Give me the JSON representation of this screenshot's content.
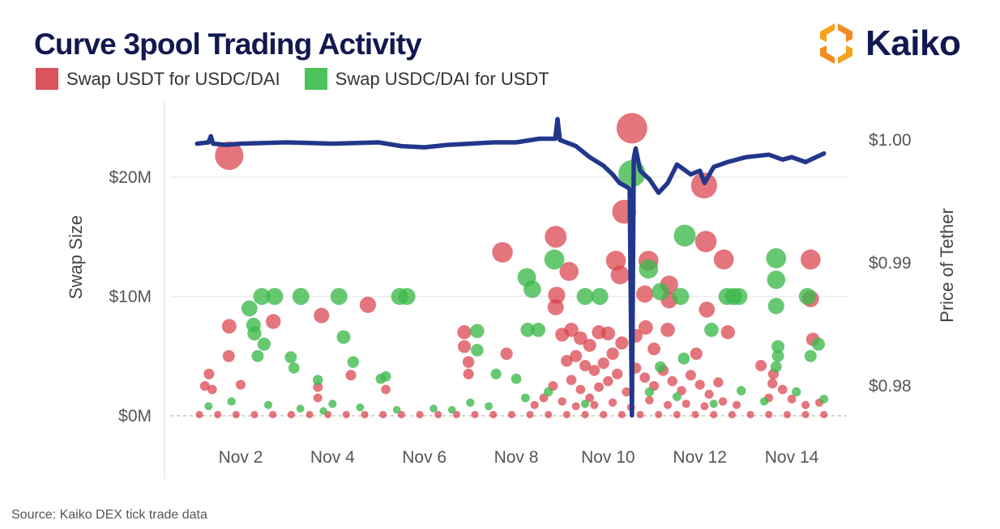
{
  "chart_data": {
    "type": "scatter",
    "title": "Curve 3pool Trading Activity",
    "ylabel": "Swap Size",
    "y2label": "Price of Tether",
    "xticks": [
      "Nov 2",
      "Nov 4",
      "Nov 6",
      "Nov 8",
      "Nov 10",
      "Nov 12",
      "Nov 14"
    ],
    "xtick_days": [
      2,
      4,
      6,
      8,
      10,
      12,
      14
    ],
    "yticks": [
      "$0M",
      "$10M",
      "$20M"
    ],
    "ytick_values": [
      0,
      10,
      20
    ],
    "y2ticks": [
      "$1.00",
      "$0.99",
      "$0.98"
    ],
    "y2tick_values": [
      1.0,
      0.99,
      0.98
    ],
    "x_unit": "day of November",
    "y_unit": "$M",
    "grid": true,
    "legend_placement": "top-left",
    "colors": {
      "usdt_sold": "#d9404a",
      "usdt_bought": "#3cb84a",
      "price_line": "#22378a"
    },
    "series": [
      {
        "name": "Swap USDT for USDC/DAI",
        "color_key": "usdt_sold",
        "points": [
          [
            1.75,
            21.8
          ],
          [
            1.75,
            7.5
          ],
          [
            1.74,
            5.0
          ],
          [
            1.31,
            3.5
          ],
          [
            1.22,
            2.5
          ],
          [
            1.38,
            2.2
          ],
          [
            2.0,
            2.6
          ],
          [
            2.71,
            7.9
          ],
          [
            3.76,
            8.4
          ],
          [
            4.77,
            9.3
          ],
          [
            4.4,
            3.4
          ],
          [
            3.68,
            2.4
          ],
          [
            3.68,
            1.5
          ],
          [
            5.16,
            2.2
          ],
          [
            6.87,
            7.0
          ],
          [
            6.87,
            5.8
          ],
          [
            6.96,
            4.5
          ],
          [
            6.96,
            3.5
          ],
          [
            7.7,
            13.7
          ],
          [
            7.79,
            5.2
          ],
          [
            8.86,
            15.0
          ],
          [
            9.15,
            12.1
          ],
          [
            8.88,
            10.1
          ],
          [
            8.86,
            9.1
          ],
          [
            10.17,
            13.0
          ],
          [
            10.26,
            11.8
          ],
          [
            10.52,
            24.1
          ],
          [
            10.35,
            17.1
          ],
          [
            10.88,
            13.0
          ],
          [
            10.8,
            10.2
          ],
          [
            11.33,
            11.0
          ],
          [
            11.33,
            9.7
          ],
          [
            12.13,
            14.6
          ],
          [
            12.52,
            13.1
          ],
          [
            12.09,
            19.3
          ],
          [
            12.15,
            8.9
          ],
          [
            12.61,
            7.0
          ],
          [
            14.41,
            13.1
          ],
          [
            14.41,
            9.8
          ],
          [
            14.46,
            6.4
          ],
          [
            13.33,
            4.2
          ],
          [
            13.58,
            2.7
          ],
          [
            11.3,
            7.2
          ],
          [
            10.82,
            7.4
          ],
          [
            11.92,
            5.2
          ],
          [
            9.0,
            6.8
          ],
          [
            9.2,
            7.2
          ],
          [
            9.4,
            6.5
          ],
          [
            9.6,
            5.9
          ],
          [
            9.3,
            5.0
          ],
          [
            9.1,
            4.6
          ],
          [
            9.5,
            4.2
          ],
          [
            9.7,
            3.8
          ],
          [
            9.9,
            4.4
          ],
          [
            10.1,
            5.2
          ],
          [
            10.3,
            6.1
          ],
          [
            10.0,
            2.9
          ],
          [
            9.2,
            3.0
          ],
          [
            9.4,
            2.2
          ],
          [
            9.6,
            1.5
          ],
          [
            9.8,
            2.4
          ],
          [
            10.2,
            3.5
          ],
          [
            10.4,
            2.0
          ],
          [
            10.6,
            4.0
          ],
          [
            10.8,
            3.2
          ],
          [
            11.0,
            2.5
          ],
          [
            11.2,
            3.8
          ],
          [
            11.4,
            2.9
          ],
          [
            11.6,
            2.1
          ],
          [
            11.8,
            3.4
          ],
          [
            12.0,
            2.6
          ],
          [
            12.2,
            1.8
          ],
          [
            9.0,
            1.2
          ],
          [
            9.3,
            0.8
          ],
          [
            9.7,
            0.9
          ],
          [
            10.1,
            1.1
          ],
          [
            10.5,
            0.7
          ],
          [
            10.9,
            1.3
          ],
          [
            11.3,
            0.9
          ],
          [
            11.7,
            1.0
          ],
          [
            12.1,
            0.8
          ],
          [
            12.5,
            1.2
          ],
          [
            12.8,
            0.9
          ],
          [
            13.5,
            1.5
          ],
          [
            13.8,
            2.2
          ],
          [
            14.0,
            1.4
          ],
          [
            14.3,
            0.9
          ],
          [
            14.6,
            1.1
          ],
          [
            8.6,
            1.5
          ],
          [
            8.4,
            0.9
          ],
          [
            8.8,
            2.5
          ],
          [
            10.6,
            6.7
          ],
          [
            10.0,
            6.9
          ],
          [
            11.0,
            5.6
          ],
          [
            9.8,
            7.0
          ],
          [
            12.4,
            2.8
          ],
          [
            13.6,
            3.5
          ],
          [
            1.1,
            0.1
          ],
          [
            1.5,
            0.1
          ],
          [
            1.9,
            0.1
          ],
          [
            2.3,
            0.1
          ],
          [
            2.7,
            0.1
          ],
          [
            3.1,
            0.1
          ],
          [
            3.5,
            0.1
          ],
          [
            3.9,
            0.1
          ],
          [
            4.3,
            0.1
          ],
          [
            4.7,
            0.1
          ],
          [
            5.1,
            0.1
          ],
          [
            5.5,
            0.1
          ],
          [
            5.9,
            0.1
          ],
          [
            6.3,
            0.1
          ],
          [
            6.7,
            0.1
          ],
          [
            7.1,
            0.1
          ],
          [
            7.5,
            0.1
          ],
          [
            7.9,
            0.1
          ],
          [
            8.3,
            0.1
          ],
          [
            8.7,
            0.1
          ],
          [
            9.1,
            0.1
          ],
          [
            9.5,
            0.1
          ],
          [
            9.9,
            0.1
          ],
          [
            10.3,
            0.1
          ],
          [
            10.7,
            0.1
          ],
          [
            11.1,
            0.1
          ],
          [
            11.5,
            0.1
          ],
          [
            11.9,
            0.1
          ],
          [
            12.3,
            0.1
          ],
          [
            12.7,
            0.1
          ],
          [
            13.1,
            0.1
          ],
          [
            13.5,
            0.1
          ],
          [
            13.9,
            0.1
          ],
          [
            14.3,
            0.1
          ],
          [
            14.7,
            0.1
          ]
        ]
      },
      {
        "name": "Swap USDC/DAI for USDT",
        "color_key": "usdt_bought",
        "points": [
          [
            2.19,
            9.0
          ],
          [
            2.46,
            10.0
          ],
          [
            2.74,
            10.0
          ],
          [
            2.28,
            7.6
          ],
          [
            2.3,
            6.9
          ],
          [
            2.51,
            6.0
          ],
          [
            2.37,
            5.0
          ],
          [
            3.31,
            10.0
          ],
          [
            4.24,
            6.6
          ],
          [
            3.09,
            4.9
          ],
          [
            3.16,
            4.0
          ],
          [
            4.14,
            10.0
          ],
          [
            4.45,
            4.5
          ],
          [
            3.68,
            3.0
          ],
          [
            5.46,
            10.0
          ],
          [
            5.62,
            10.0
          ],
          [
            5.05,
            3.1
          ],
          [
            5.16,
            3.3
          ],
          [
            7.15,
            7.1
          ],
          [
            7.15,
            5.5
          ],
          [
            7.56,
            3.5
          ],
          [
            8.0,
            3.1
          ],
          [
            8.25,
            7.2
          ],
          [
            8.83,
            13.1
          ],
          [
            8.23,
            11.6
          ],
          [
            8.35,
            10.6
          ],
          [
            8.48,
            7.2
          ],
          [
            9.5,
            10.0
          ],
          [
            9.82,
            10.0
          ],
          [
            10.52,
            20.3
          ],
          [
            10.88,
            12.3
          ],
          [
            11.14,
            10.4
          ],
          [
            11.58,
            10.0
          ],
          [
            11.67,
            15.1
          ],
          [
            12.25,
            7.2
          ],
          [
            12.59,
            10.0
          ],
          [
            12.73,
            10.0
          ],
          [
            12.85,
            10.0
          ],
          [
            13.66,
            13.2
          ],
          [
            13.66,
            11.4
          ],
          [
            13.66,
            9.2
          ],
          [
            14.34,
            10.0
          ],
          [
            14.58,
            6.0
          ],
          [
            14.41,
            5.0
          ],
          [
            13.7,
            5.8
          ],
          [
            13.7,
            5.0
          ],
          [
            13.66,
            4.1
          ],
          [
            11.65,
            4.8
          ],
          [
            11.14,
            4.1
          ],
          [
            1.3,
            0.8
          ],
          [
            1.8,
            1.2
          ],
          [
            2.6,
            0.9
          ],
          [
            3.3,
            0.6
          ],
          [
            4.0,
            1.0
          ],
          [
            4.6,
            0.7
          ],
          [
            5.4,
            0.5
          ],
          [
            6.2,
            0.6
          ],
          [
            7.0,
            1.1
          ],
          [
            7.4,
            0.8
          ],
          [
            8.2,
            1.5
          ],
          [
            8.7,
            2.0
          ],
          [
            9.5,
            1.0
          ],
          [
            10.9,
            2.0
          ],
          [
            11.5,
            1.6
          ],
          [
            12.3,
            1.0
          ],
          [
            12.9,
            2.1
          ],
          [
            13.4,
            1.2
          ],
          [
            14.1,
            2.0
          ],
          [
            14.7,
            1.4
          ],
          [
            6.6,
            0.5
          ],
          [
            3.8,
            0.4
          ]
        ]
      }
    ],
    "price_series": {
      "name": "Price of Tether",
      "points": [
        [
          1.05,
          0.9997
        ],
        [
          1.3,
          0.9998
        ],
        [
          1.35,
          1.0003
        ],
        [
          1.4,
          0.9997
        ],
        [
          1.7,
          0.9996
        ],
        [
          2.0,
          0.9997
        ],
        [
          3.0,
          0.9998
        ],
        [
          4.0,
          0.9997
        ],
        [
          5.0,
          0.9998
        ],
        [
          5.5,
          0.9995
        ],
        [
          6.0,
          0.9994
        ],
        [
          6.5,
          0.9996
        ],
        [
          7.0,
          0.9997
        ],
        [
          7.5,
          0.9998
        ],
        [
          8.0,
          0.9998
        ],
        [
          8.5,
          1.0001
        ],
        [
          8.85,
          1.0001
        ],
        [
          8.9,
          1.0017
        ],
        [
          8.95,
          1.0
        ],
        [
          9.3,
          0.9995
        ],
        [
          9.6,
          0.9986
        ],
        [
          9.9,
          0.9979
        ],
        [
          10.1,
          0.9972
        ],
        [
          10.25,
          0.9965
        ],
        [
          10.4,
          0.9962
        ],
        [
          10.47,
          0.996
        ],
        [
          10.52,
          0.9776
        ],
        [
          10.56,
          0.9985
        ],
        [
          10.6,
          0.9993
        ],
        [
          10.7,
          0.9975
        ],
        [
          10.9,
          0.9968
        ],
        [
          11.1,
          0.9957
        ],
        [
          11.3,
          0.9965
        ],
        [
          11.5,
          0.998
        ],
        [
          11.8,
          0.9972
        ],
        [
          12.0,
          0.9975
        ],
        [
          12.1,
          0.9965
        ],
        [
          12.3,
          0.9978
        ],
        [
          12.6,
          0.9982
        ],
        [
          13.0,
          0.9986
        ],
        [
          13.5,
          0.9988
        ],
        [
          13.8,
          0.9984
        ],
        [
          14.0,
          0.9986
        ],
        [
          14.3,
          0.9982
        ],
        [
          14.7,
          0.9989
        ]
      ]
    }
  },
  "legend": [
    {
      "label": "Swap USDT for USDC/DAI",
      "color": "#d9545c"
    },
    {
      "label": "Swap USDC/DAI for USDT",
      "color": "#4cc35a"
    }
  ],
  "logo": {
    "text": "Kaiko",
    "icon": "kaiko-hexagon-logo-icon"
  },
  "source": "Source: Kaiko DEX tick trade data"
}
